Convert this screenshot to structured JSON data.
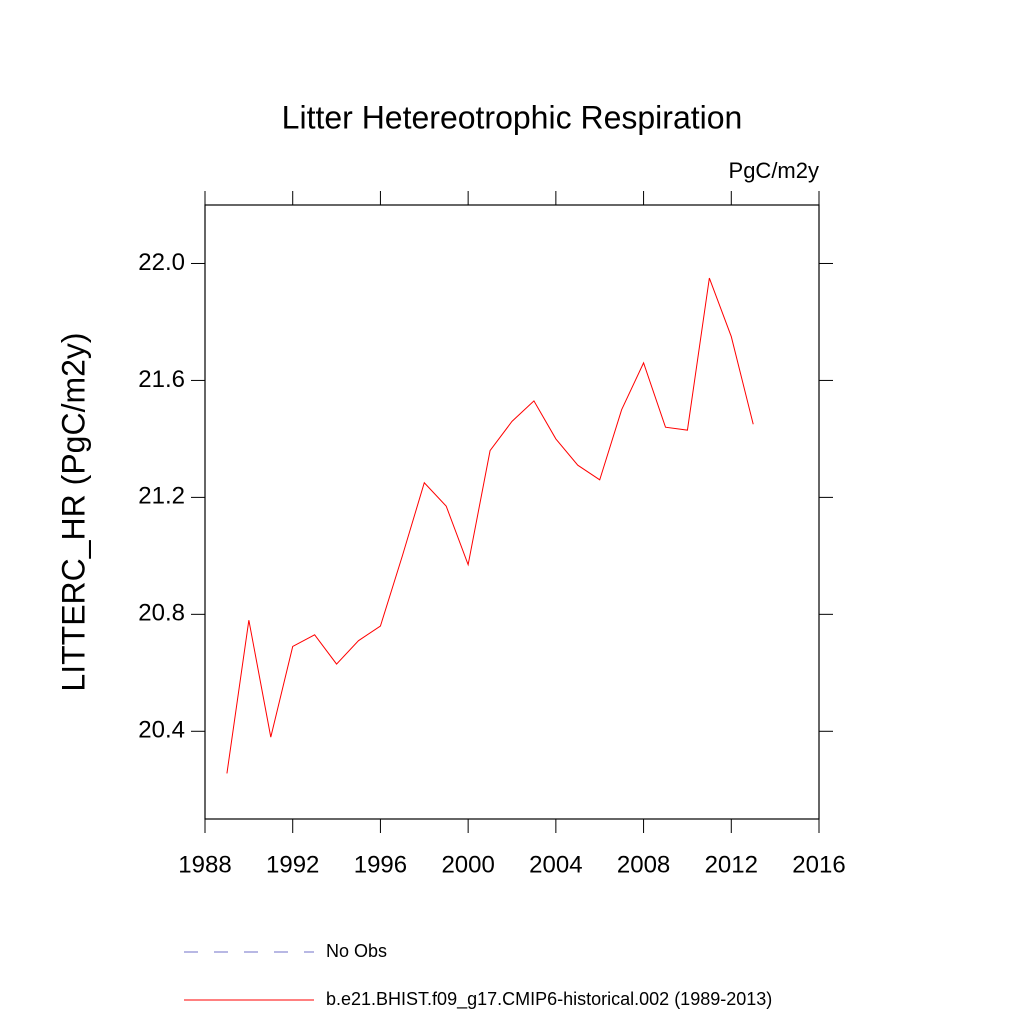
{
  "chart_data": {
    "type": "line",
    "title": "Litter Hetereotrophic Respiration",
    "units": "PgC/m2y",
    "y_label": "LITTERC_HR  (PgC/m2y)",
    "x": [
      1989,
      1990,
      1991,
      1992,
      1993,
      1994,
      1995,
      1996,
      1997,
      1998,
      1999,
      2000,
      2001,
      2002,
      2003,
      2004,
      2005,
      2006,
      2007,
      2008,
      2009,
      2010,
      2011,
      2012,
      2013
    ],
    "series": [
      {
        "name": "No Obs",
        "color": "#7070c8",
        "dashed": true,
        "values": [
          null,
          null,
          null,
          null,
          null,
          null,
          null,
          null,
          null,
          null,
          null,
          null,
          null,
          null,
          null,
          null,
          null,
          null,
          null,
          null,
          null,
          null,
          null,
          null,
          null
        ]
      },
      {
        "name": "b.e21.BHIST.f09_g17.CMIP6-historical.002 (1989-2013)",
        "color": "#ff0000",
        "dashed": false,
        "values": [
          20.256,
          20.78,
          20.38,
          20.69,
          20.73,
          20.63,
          20.71,
          20.76,
          21.0,
          21.25,
          21.17,
          20.97,
          21.36,
          21.46,
          21.53,
          21.4,
          21.31,
          21.26,
          21.5,
          21.66,
          21.44,
          21.43,
          21.95,
          21.75,
          21.45
        ]
      }
    ],
    "xlim": [
      1988,
      2016
    ],
    "xticks": [
      1988,
      1992,
      1996,
      2000,
      2004,
      2008,
      2012,
      2016
    ],
    "ylim": [
      20.1,
      22.2
    ],
    "yticks": [
      20.4,
      20.8,
      21.2,
      21.6,
      {
        "value": 22,
        "label": "22.0"
      }
    ]
  }
}
